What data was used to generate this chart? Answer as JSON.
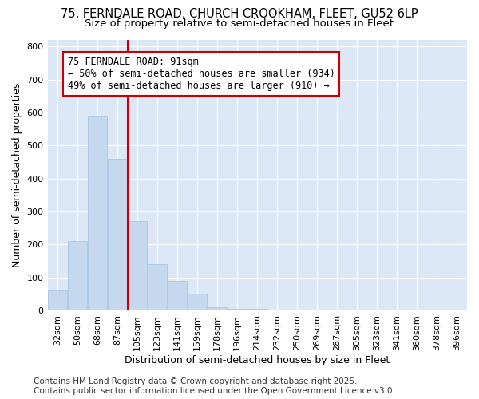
{
  "title_line1": "75, FERNDALE ROAD, CHURCH CROOKHAM, FLEET, GU52 6LP",
  "title_line2": "Size of property relative to semi-detached houses in Fleet",
  "xlabel": "Distribution of semi-detached houses by size in Fleet",
  "ylabel": "Number of semi-detached properties",
  "categories": [
    "32sqm",
    "50sqm",
    "68sqm",
    "87sqm",
    "105sqm",
    "123sqm",
    "141sqm",
    "159sqm",
    "178sqm",
    "196sqm",
    "214sqm",
    "232sqm",
    "250sqm",
    "269sqm",
    "287sqm",
    "305sqm",
    "323sqm",
    "341sqm",
    "360sqm",
    "378sqm",
    "396sqm"
  ],
  "values": [
    60,
    210,
    590,
    460,
    270,
    140,
    90,
    50,
    10,
    5,
    5,
    0,
    0,
    0,
    0,
    0,
    0,
    0,
    0,
    0,
    0
  ],
  "bar_color": "#c5d8ed",
  "bar_edge_color": "#a8c8e8",
  "vline_index": 3,
  "vline_color": "#cc0000",
  "annotation_title": "75 FERNDALE ROAD: 91sqm",
  "annotation_line2": "← 50% of semi-detached houses are smaller (934)",
  "annotation_line3": "49% of semi-detached houses are larger (910) →",
  "annotation_box_color": "#cc0000",
  "ylim": [
    0,
    820
  ],
  "yticks": [
    0,
    100,
    200,
    300,
    400,
    500,
    600,
    700,
    800
  ],
  "footer_line1": "Contains HM Land Registry data © Crown copyright and database right 2025.",
  "footer_line2": "Contains public sector information licensed under the Open Government Licence v3.0.",
  "fig_bg_color": "#ffffff",
  "plot_bg_color": "#dce8f5",
  "grid_color": "#ffffff",
  "title_fontsize": 10.5,
  "subtitle_fontsize": 9.5,
  "axis_label_fontsize": 9,
  "tick_fontsize": 8,
  "annotation_fontsize": 8.5,
  "footer_fontsize": 7.5
}
